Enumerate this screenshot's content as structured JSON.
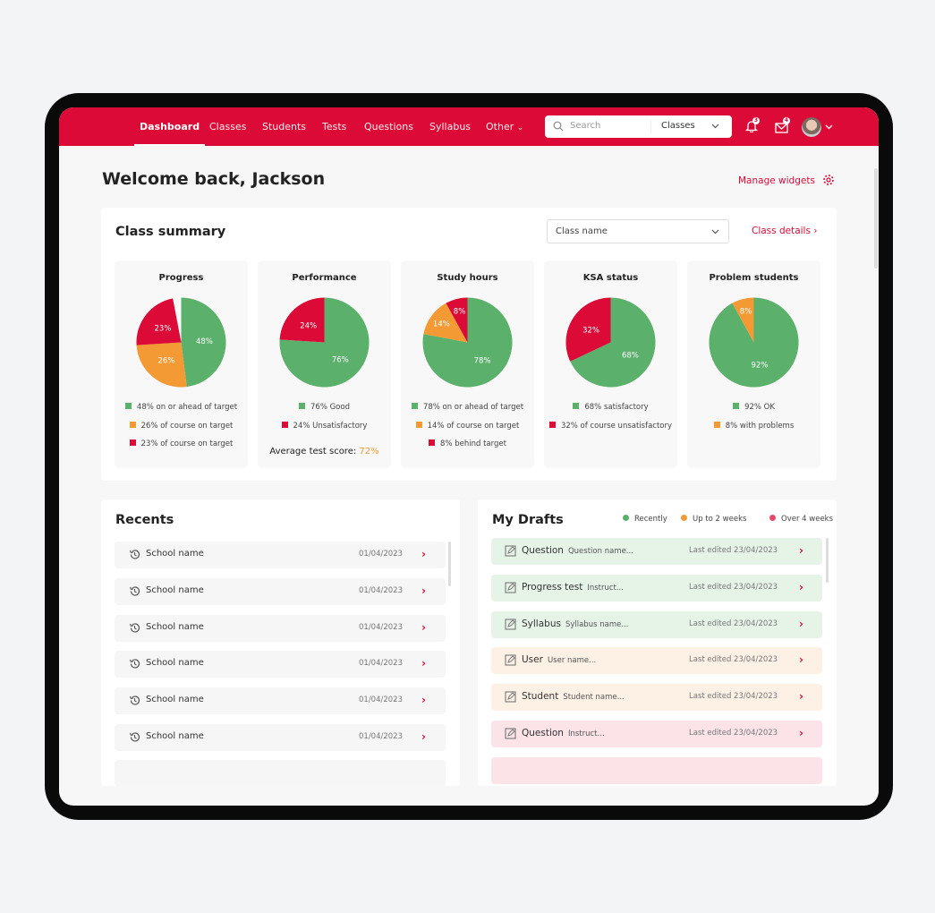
{
  "nav": {
    "items": [
      "Dashboard",
      "Classes",
      "Students",
      "Tests",
      "Questions",
      "Syllabus",
      "Other"
    ],
    "active": "Dashboard",
    "search_placeholder": "Search",
    "search_scope": "Classes",
    "notifications_count": "3",
    "messages_count": "4"
  },
  "header": {
    "title": "Welcome back, Jackson",
    "manage_widgets": "Manage widgets"
  },
  "class_summary": {
    "title": "Class summary",
    "dropdown_value": "Class name",
    "details_link": "Class details",
    "average_label": "Average test score: ",
    "average_value": "72%"
  },
  "colors": {
    "brand": "#dc0a36",
    "green": "#5bb06b",
    "orange": "#f39a35",
    "red": "#dc0a36"
  },
  "chart_data": [
    {
      "type": "pie",
      "title": "Progress",
      "slices": [
        {
          "value": 48,
          "label": "48%",
          "color": "green",
          "legend": "48% on or ahead of target"
        },
        {
          "value": 26,
          "label": "26%",
          "color": "orange",
          "legend": "26% of course on target"
        },
        {
          "value": 23,
          "label": "23%",
          "color": "red",
          "legend": "23% of course on target"
        }
      ]
    },
    {
      "type": "pie",
      "title": "Performance",
      "slices": [
        {
          "value": 76,
          "label": "76%",
          "color": "green",
          "legend": "76% Good"
        },
        {
          "value": 24,
          "label": "24%",
          "color": "red",
          "legend": "24% Unsatisfactory"
        }
      ]
    },
    {
      "type": "pie",
      "title": "Study hours",
      "slices": [
        {
          "value": 78,
          "label": "78%",
          "color": "green",
          "legend": "78% on or ahead of target"
        },
        {
          "value": 14,
          "label": "14%",
          "color": "orange",
          "legend": "14% of course on target"
        },
        {
          "value": 8,
          "label": "8%",
          "color": "red",
          "legend": "8% behind target"
        }
      ]
    },
    {
      "type": "pie",
      "title": "KSA status",
      "slices": [
        {
          "value": 68,
          "label": "68%",
          "color": "green",
          "legend": "68% satisfactory"
        },
        {
          "value": 32,
          "label": "32%",
          "color": "red",
          "legend": "32% of course unsatisfactory"
        }
      ]
    },
    {
      "type": "pie",
      "title": "Problem students",
      "slices": [
        {
          "value": 92,
          "label": "92%",
          "color": "green",
          "legend": "92% OK"
        },
        {
          "value": 8,
          "label": "8%",
          "color": "orange",
          "legend": "8% with problems"
        }
      ]
    }
  ],
  "recents": {
    "title": "Recents",
    "items": [
      {
        "name": "School name",
        "date": "01/04/2023"
      },
      {
        "name": "School name",
        "date": "01/04/2023"
      },
      {
        "name": "School name",
        "date": "01/04/2023"
      },
      {
        "name": "School name",
        "date": "01/04/2023"
      },
      {
        "name": "School name",
        "date": "01/04/2023"
      },
      {
        "name": "School name",
        "date": "01/04/2023"
      }
    ]
  },
  "drafts": {
    "title": "My Drafts",
    "legend": [
      {
        "label": "Recently",
        "color": "#5bb06b"
      },
      {
        "label": "Up to 2 weeks",
        "color": "#f39a35"
      },
      {
        "label": "Over 4 weeks",
        "color": "#e4496a"
      }
    ],
    "items": [
      {
        "type": "Question",
        "desc": "Question name...",
        "edited": "Last edited 23/04/2023",
        "age": "recent"
      },
      {
        "type": "Progress test",
        "desc": "Instruct...",
        "edited": "Last edited 23/04/2023",
        "age": "recent"
      },
      {
        "type": "Syllabus",
        "desc": "Syllabus name...",
        "edited": "Last edited 23/04/2023",
        "age": "recent"
      },
      {
        "type": "User",
        "desc": "User name...",
        "edited": "Last edited 23/04/2023",
        "age": "two-weeks"
      },
      {
        "type": "Student",
        "desc": "Student name...",
        "edited": "Last edited 23/04/2023",
        "age": "two-weeks"
      },
      {
        "type": "Question",
        "desc": "Instruct...",
        "edited": "Last edited 23/04/2023",
        "age": "four-weeks"
      }
    ]
  }
}
